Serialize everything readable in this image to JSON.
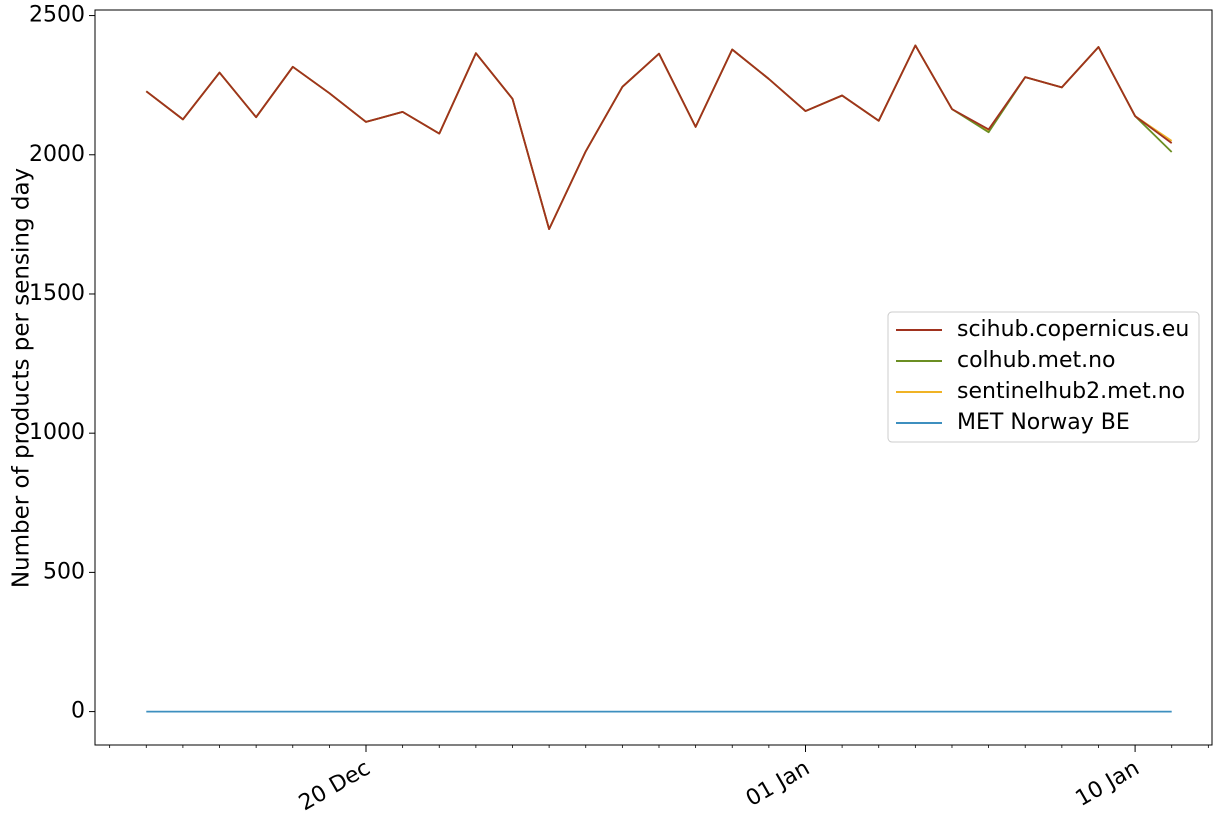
{
  "chart_data": {
    "type": "line",
    "title": "",
    "xlabel": "",
    "ylabel": "Number of products per sensing day",
    "x_start": "2021-12-14",
    "x": [
      "2021-12-14",
      "2021-12-15",
      "2021-12-16",
      "2021-12-17",
      "2021-12-18",
      "2021-12-19",
      "2021-12-20",
      "2021-12-21",
      "2021-12-22",
      "2021-12-23",
      "2021-12-24",
      "2021-12-25",
      "2021-12-26",
      "2021-12-27",
      "2021-12-28",
      "2021-12-29",
      "2021-12-30",
      "2021-12-31",
      "2022-01-01",
      "2022-01-02",
      "2022-01-03",
      "2022-01-04",
      "2022-01-05",
      "2022-01-06",
      "2022-01-07",
      "2022-01-08",
      "2022-01-09",
      "2022-01-10",
      "2022-01-11"
    ],
    "xlim": [
      "2021-12-12.6",
      "2022-01-12.1"
    ],
    "ylim": [
      -120,
      2520
    ],
    "y_ticks": [
      0,
      500,
      1000,
      1500,
      2000,
      2500
    ],
    "x_ticks": [
      {
        "date": "2021-12-20",
        "label": "20 Dec"
      },
      {
        "date": "2022-01-01",
        "label": "01 Jan"
      },
      {
        "date": "2022-01-10",
        "label": "10 Jan"
      }
    ],
    "grid": false,
    "legend_position": "center-right",
    "series": [
      {
        "name": "scihub.copernicus.eu",
        "color": "#a0321e",
        "values": [
          2228,
          2127,
          2295,
          2135,
          2316,
          2221,
          2118,
          2154,
          2076,
          2365,
          2201,
          1733,
          2012,
          2244,
          2363,
          2100,
          2378,
          2272,
          2157,
          2213,
          2122,
          2393,
          2164,
          2091,
          2279,
          2242,
          2387,
          2139,
          2042
        ]
      },
      {
        "name": "colhub.met.no",
        "color": "#6b8e23",
        "values": [
          2228,
          2127,
          2295,
          2135,
          2316,
          2221,
          2118,
          2154,
          2076,
          2365,
          2201,
          1733,
          2012,
          2244,
          2363,
          2100,
          2378,
          2272,
          2157,
          2213,
          2122,
          2393,
          2164,
          2081,
          2279,
          2242,
          2387,
          2139,
          2010
        ]
      },
      {
        "name": "sentinelhub2.met.no",
        "color": "#f0b325",
        "values": [
          2228,
          2127,
          2295,
          2135,
          2316,
          2221,
          2118,
          2154,
          2076,
          2365,
          2201,
          1733,
          2012,
          2244,
          2363,
          2100,
          2378,
          2272,
          2157,
          2213,
          2122,
          2393,
          2164,
          2086,
          2279,
          2242,
          2387,
          2139,
          2050
        ]
      },
      {
        "name": "MET Norway BE",
        "color": "#3d8fbf",
        "values": [
          0,
          0,
          0,
          0,
          0,
          0,
          0,
          0,
          0,
          0,
          0,
          0,
          0,
          0,
          0,
          0,
          0,
          0,
          0,
          0,
          0,
          0,
          0,
          0,
          0,
          0,
          0,
          0,
          0
        ]
      }
    ]
  }
}
